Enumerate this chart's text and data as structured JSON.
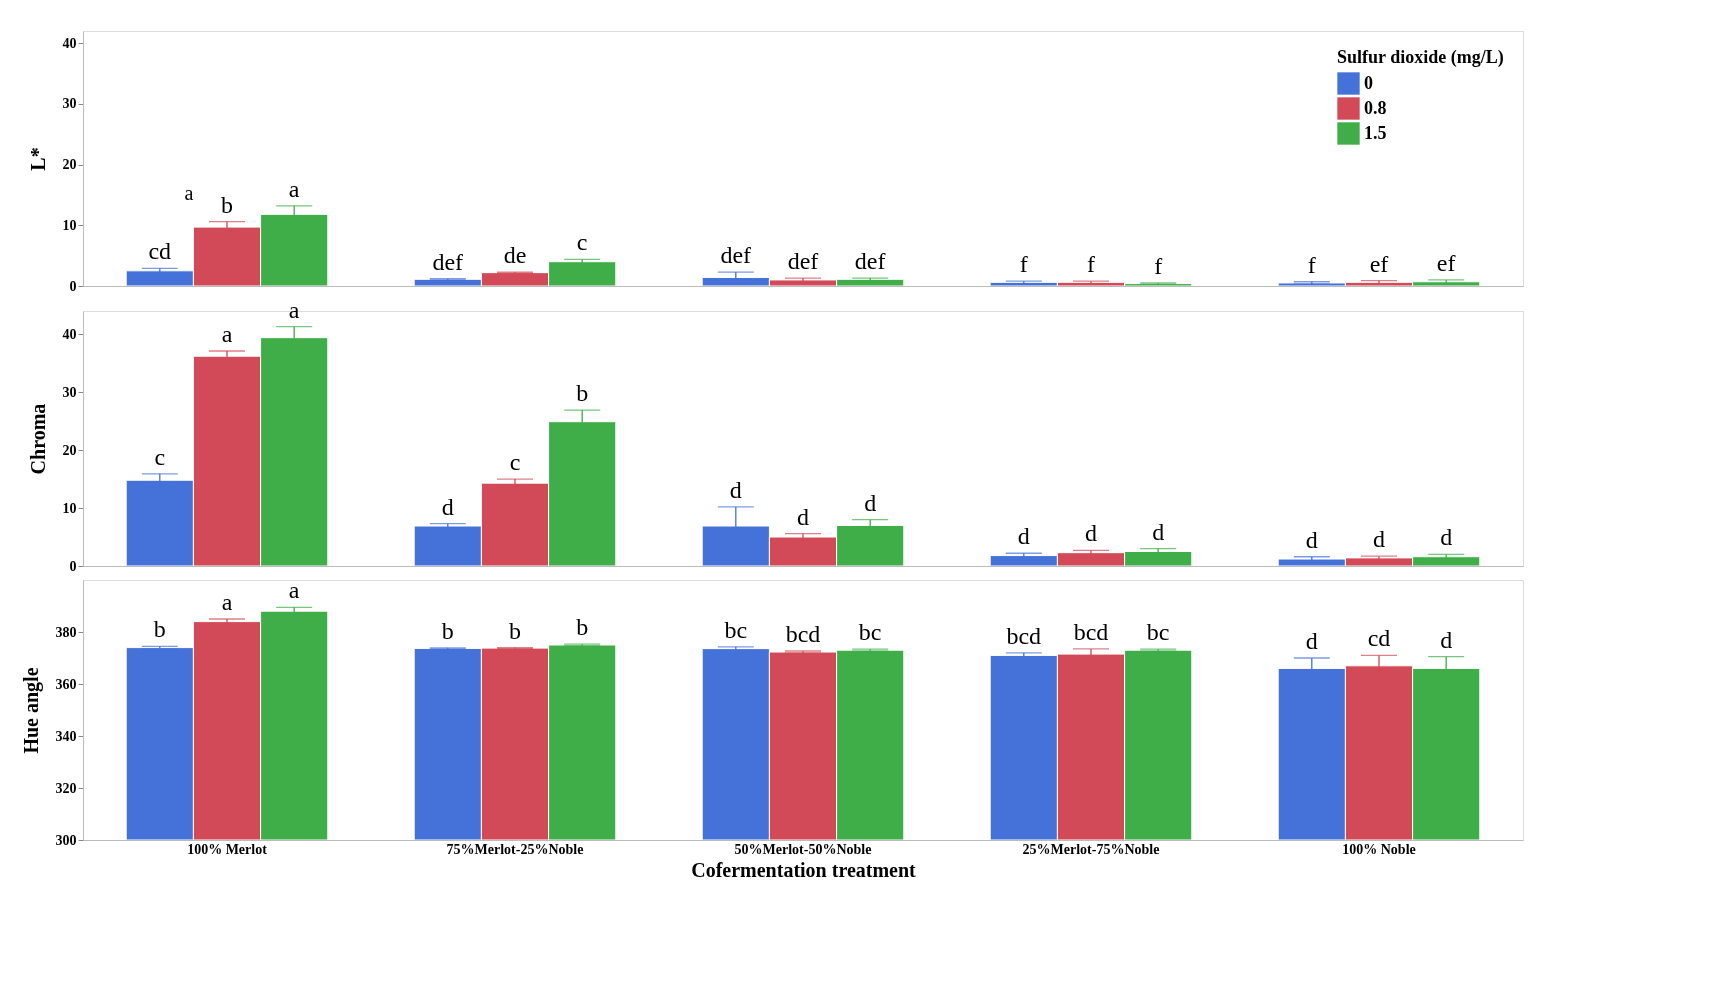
{
  "chart_data": [
    {
      "type": "bar",
      "ylabel": "L*",
      "legend_title": "Sulfur dioxide (mg/L)",
      "legend": "top right",
      "grid": false,
      "tick_labels": "y",
      "categories": [
        null,
        null,
        null,
        null,
        null
      ],
      "ylim": [
        0,
        42
      ],
      "yticks": [
        0,
        10,
        20,
        30,
        40
      ],
      "series": [
        {
          "name": "0",
          "color": "#4472d8",
          "values": [
            2.5,
            1.1,
            1.4,
            0.6,
            0.5
          ],
          "errors": [
            0.4,
            0.1,
            0.9,
            0.2,
            0.2
          ],
          "value_labels": [
            "cd",
            "def",
            "def",
            "f",
            "f"
          ]
        },
        {
          "name": "0.8",
          "color": "#d24a57",
          "values": [
            9.7,
            2.2,
            1.0,
            0.6,
            0.6
          ],
          "errors": [
            0.9,
            0.1,
            0.3,
            0.2,
            0.3
          ],
          "value_labels": [
            "b",
            "de",
            "def",
            "f",
            "ef"
          ]
        },
        {
          "name": "1.5",
          "color": "#3fae48",
          "values": [
            11.8,
            4.0,
            1.1,
            0.4,
            0.7
          ],
          "errors": [
            1.4,
            0.4,
            0.2,
            0.1,
            0.3
          ],
          "value_labels": [
            "a",
            "c",
            "def",
            "f",
            "ef"
          ]
        }
      ],
      "annotations": [
        "a"
      ]
    },
    {
      "type": "bar",
      "ylabel": "Chroma",
      "legend": false,
      "grid": false,
      "tick_labels": "y",
      "categories": [
        null,
        null,
        null,
        null,
        null
      ],
      "ylim": [
        0,
        44
      ],
      "yticks": [
        0,
        10,
        20,
        30,
        40
      ],
      "series": [
        {
          "name": "0",
          "color": "#4472d8",
          "values": [
            14.8,
            6.9,
            6.9,
            1.8,
            1.2
          ],
          "errors": [
            1.1,
            0.4,
            3.3,
            0.4,
            0.4
          ],
          "value_labels": [
            "c",
            "d",
            "d",
            "d",
            "d"
          ]
        },
        {
          "name": "0.8",
          "color": "#d24a57",
          "values": [
            36.2,
            14.3,
            5.0,
            2.3,
            1.4
          ],
          "errors": [
            0.9,
            0.7,
            0.6,
            0.4,
            0.3
          ],
          "value_labels": [
            "a",
            "c",
            "d",
            "d",
            "d"
          ]
        },
        {
          "name": "1.5",
          "color": "#3fae48",
          "values": [
            39.4,
            24.9,
            7.0,
            2.5,
            1.6
          ],
          "errors": [
            1.9,
            2.0,
            1.0,
            0.5,
            0.4
          ],
          "value_labels": [
            "a",
            "b",
            "d",
            "d",
            "d"
          ]
        }
      ]
    },
    {
      "type": "bar",
      "ylabel": "Hue angle",
      "xlabel": "Cofermentation treatment",
      "legend": false,
      "grid": false,
      "categories": [
        "100% Merlot",
        "75%Merlot-25%Noble",
        "50%Merlot-50%Noble",
        "25%Merlot-75%Noble",
        "100% Noble"
      ],
      "ylim": [
        300,
        400
      ],
      "yticks": [
        300,
        320,
        340,
        360,
        380
      ],
      "series": [
        {
          "name": "0",
          "color": "#4472d8",
          "values": [
            374,
            373.7,
            373.6,
            371,
            366
          ],
          "errors": [
            0.5,
            0.2,
            0.7,
            1,
            4
          ],
          "value_labels": [
            "b",
            "b",
            "bc",
            "bcd",
            "d"
          ]
        },
        {
          "name": "0.8",
          "color": "#d24a57",
          "values": [
            384,
            373.8,
            372.3,
            371.5,
            367
          ],
          "errors": [
            1,
            0.2,
            0.4,
            2,
            4
          ],
          "value_labels": [
            "a",
            "b",
            "bcd",
            "bcd",
            "cd"
          ]
        },
        {
          "name": "1.5",
          "color": "#3fae48",
          "values": [
            388,
            375,
            373,
            373,
            366
          ],
          "errors": [
            1.5,
            0.3,
            0.4,
            0.4,
            4.5
          ],
          "value_labels": [
            "a",
            "b",
            "bc",
            "bc",
            "d"
          ]
        }
      ]
    }
  ]
}
